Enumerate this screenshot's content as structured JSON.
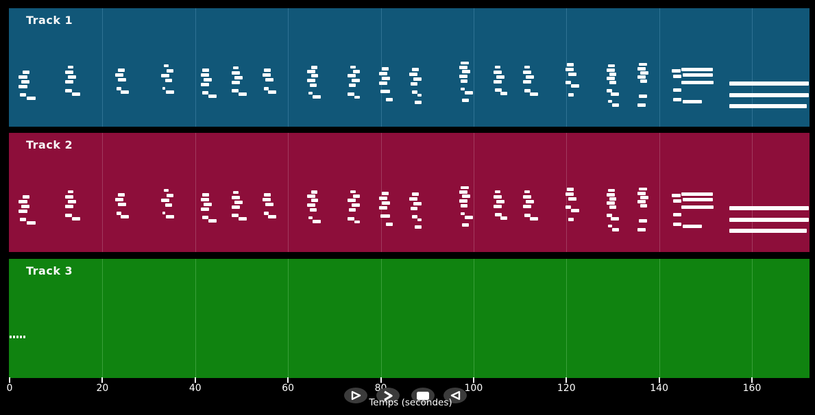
{
  "colors": {
    "background": "#000000",
    "note": "#FFFFFF",
    "text": "#F8F8F8",
    "button_bg": "#3B3B3B",
    "button_icon": "#FFFFFF"
  },
  "tracks": [
    {
      "label": "Track 1",
      "bg": "#115778",
      "grid": "#2F7294",
      "pattern": "main"
    },
    {
      "label": "Track 2",
      "bg": "#8D0E3A",
      "grid": "#A23A5E",
      "pattern": "main"
    },
    {
      "label": "Track 3",
      "bg": "#108310",
      "grid": "#3AA03A",
      "pattern": "intro"
    }
  ],
  "axis": {
    "label": "Temps (secondes)",
    "unit": "seconds",
    "ticks": [
      0,
      20,
      40,
      60,
      80,
      100,
      120,
      140,
      160
    ],
    "max_seconds": 172
  },
  "controls": [
    {
      "name": "play",
      "icon": "play-outline-icon"
    },
    {
      "name": "fast-forward",
      "icon": "chevron-right-icon"
    },
    {
      "name": "stop",
      "icon": "stop-square-icon"
    },
    {
      "name": "rewind",
      "icon": "triangle-left-icon"
    }
  ],
  "patterns_units": "note rectangles as [x,y,w,h] px relative to track panel top-left",
  "patterns": {
    "main": [
      [
        20,
        91,
        10,
        5
      ],
      [
        14,
        98,
        13,
        5
      ],
      [
        18,
        105,
        12,
        5
      ],
      [
        14,
        112,
        13,
        5
      ],
      [
        16,
        124,
        9,
        5
      ],
      [
        26,
        129,
        13,
        5
      ],
      [
        86,
        84,
        8,
        4
      ],
      [
        82,
        91,
        12,
        5
      ],
      [
        86,
        98,
        12,
        5
      ],
      [
        82,
        105,
        12,
        5
      ],
      [
        82,
        118,
        10,
        5
      ],
      [
        92,
        123,
        12,
        5
      ],
      [
        159,
        88,
        10,
        5
      ],
      [
        155,
        95,
        12,
        5
      ],
      [
        159,
        102,
        12,
        5
      ],
      [
        157,
        115,
        7,
        5
      ],
      [
        163,
        120,
        12,
        5
      ],
      [
        226,
        82,
        7,
        4
      ],
      [
        230,
        89,
        10,
        5
      ],
      [
        222,
        96,
        12,
        5
      ],
      [
        228,
        103,
        10,
        5
      ],
      [
        224,
        115,
        4,
        4
      ],
      [
        229,
        120,
        12,
        5
      ],
      [
        282,
        88,
        10,
        5
      ],
      [
        280,
        95,
        12,
        5
      ],
      [
        284,
        102,
        12,
        5
      ],
      [
        280,
        109,
        12,
        5
      ],
      [
        282,
        121,
        9,
        5
      ],
      [
        291,
        126,
        12,
        5
      ],
      [
        327,
        85,
        8,
        4
      ],
      [
        325,
        92,
        12,
        5
      ],
      [
        329,
        99,
        12,
        5
      ],
      [
        325,
        106,
        12,
        5
      ],
      [
        325,
        118,
        10,
        5
      ],
      [
        335,
        123,
        12,
        5
      ],
      [
        372,
        88,
        10,
        5
      ],
      [
        370,
        95,
        12,
        5
      ],
      [
        374,
        102,
        12,
        5
      ],
      [
        372,
        115,
        7,
        5
      ],
      [
        378,
        120,
        12,
        5
      ],
      [
        441,
        84,
        9,
        5
      ],
      [
        435,
        90,
        12,
        5
      ],
      [
        441,
        96,
        10,
        5
      ],
      [
        435,
        103,
        12,
        5
      ],
      [
        439,
        110,
        10,
        5
      ],
      [
        437,
        122,
        6,
        4
      ],
      [
        443,
        127,
        12,
        5
      ],
      [
        498,
        84,
        8,
        4
      ],
      [
        502,
        90,
        10,
        5
      ],
      [
        494,
        96,
        12,
        5
      ],
      [
        500,
        103,
        12,
        5
      ],
      [
        496,
        110,
        10,
        5
      ],
      [
        494,
        123,
        10,
        5
      ],
      [
        504,
        128,
        8,
        4
      ],
      [
        544,
        86,
        10,
        5
      ],
      [
        540,
        93,
        12,
        5
      ],
      [
        544,
        100,
        12,
        5
      ],
      [
        540,
        107,
        12,
        5
      ],
      [
        542,
        119,
        14,
        5
      ],
      [
        550,
        131,
        10,
        5
      ],
      [
        588,
        87,
        10,
        5
      ],
      [
        584,
        94,
        12,
        5
      ],
      [
        590,
        101,
        12,
        5
      ],
      [
        586,
        108,
        10,
        5
      ],
      [
        588,
        120,
        8,
        5
      ],
      [
        596,
        125,
        6,
        4
      ],
      [
        592,
        135,
        10,
        5
      ],
      [
        659,
        78,
        12,
        4
      ],
      [
        657,
        84,
        12,
        5
      ],
      [
        661,
        90,
        12,
        5
      ],
      [
        657,
        97,
        12,
        5
      ],
      [
        659,
        104,
        10,
        5
      ],
      [
        659,
        116,
        6,
        4
      ],
      [
        665,
        121,
        12,
        5
      ],
      [
        661,
        132,
        10,
        5
      ],
      [
        709,
        84,
        8,
        4
      ],
      [
        707,
        91,
        12,
        5
      ],
      [
        711,
        98,
        12,
        5
      ],
      [
        707,
        105,
        12,
        5
      ],
      [
        709,
        117,
        10,
        5
      ],
      [
        717,
        122,
        10,
        5
      ],
      [
        752,
        84,
        8,
        4
      ],
      [
        750,
        91,
        12,
        5
      ],
      [
        754,
        98,
        12,
        5
      ],
      [
        750,
        105,
        12,
        5
      ],
      [
        752,
        118,
        9,
        5
      ],
      [
        760,
        123,
        12,
        5
      ],
      [
        814,
        80,
        10,
        5
      ],
      [
        812,
        87,
        12,
        5
      ],
      [
        816,
        94,
        12,
        5
      ],
      [
        812,
        106,
        8,
        5
      ],
      [
        820,
        111,
        12,
        5
      ],
      [
        816,
        124,
        8,
        5
      ],
      [
        874,
        82,
        10,
        4
      ],
      [
        872,
        88,
        12,
        5
      ],
      [
        876,
        94,
        10,
        5
      ],
      [
        872,
        100,
        12,
        5
      ],
      [
        876,
        106,
        10,
        5
      ],
      [
        872,
        118,
        8,
        5
      ],
      [
        878,
        123,
        12,
        5
      ],
      [
        874,
        134,
        6,
        4
      ],
      [
        880,
        139,
        10,
        5
      ],
      [
        919,
        80,
        12,
        4
      ],
      [
        917,
        86,
        12,
        5
      ],
      [
        921,
        92,
        12,
        5
      ],
      [
        917,
        98,
        12,
        5
      ],
      [
        921,
        104,
        10,
        5
      ],
      [
        919,
        126,
        12,
        5
      ],
      [
        917,
        139,
        12,
        5
      ],
      [
        967,
        89,
        13,
        5
      ],
      [
        981,
        87,
        46,
        5
      ],
      [
        969,
        97,
        12,
        5
      ],
      [
        983,
        95,
        44,
        5
      ],
      [
        981,
        106,
        47,
        5
      ],
      [
        969,
        117,
        12,
        5
      ],
      [
        969,
        131,
        12,
        5
      ],
      [
        983,
        134,
        28,
        5
      ],
      [
        1051,
        107,
        116,
        6
      ],
      [
        1051,
        124,
        116,
        6
      ],
      [
        1051,
        140,
        113,
        6
      ]
    ],
    "intro": [
      [
        1,
        112,
        3,
        4
      ],
      [
        6,
        112,
        3,
        4
      ],
      [
        11,
        112,
        3,
        4
      ],
      [
        16,
        112,
        3,
        4
      ],
      [
        21,
        112,
        3,
        4
      ]
    ]
  }
}
